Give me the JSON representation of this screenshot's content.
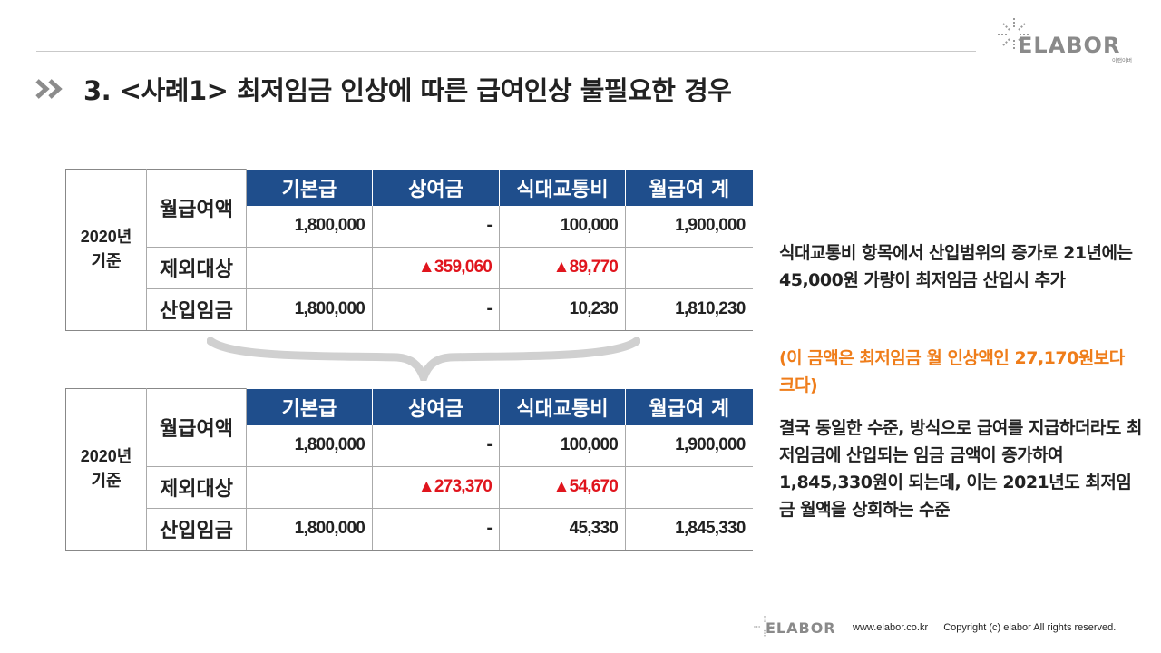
{
  "logo": {
    "text": "ELABOR",
    "subtext": "이랩이버"
  },
  "title": "3. <사례1> 최저임금 인상에 따른 급여인상 불필요한 경우",
  "tables": [
    {
      "year_label": "2020년\n기준",
      "columns": [
        "기본급",
        "상여금",
        "식대교통비",
        "월급여 계"
      ],
      "rows": [
        {
          "label": "월급여액",
          "values": [
            "1,800,000",
            "-",
            "100,000",
            "1,900,000"
          ]
        },
        {
          "label": "제외대상",
          "values": [
            "",
            "▲359,060",
            "▲89,770",
            ""
          ]
        },
        {
          "label": "산입임금",
          "values": [
            "1,800,000",
            "-",
            "10,230",
            "1,810,230"
          ]
        }
      ]
    },
    {
      "year_label": "2020년\n기준",
      "columns": [
        "기본급",
        "상여금",
        "식대교통비",
        "월급여 계"
      ],
      "rows": [
        {
          "label": "월급여액",
          "values": [
            "1,800,000",
            "-",
            "100,000",
            "1,900,000"
          ]
        },
        {
          "label": "제외대상",
          "values": [
            "",
            "▲273,370",
            "▲54,670",
            ""
          ]
        },
        {
          "label": "산입임금",
          "values": [
            "1,800,000",
            "-",
            "45,330",
            "1,845,330"
          ]
        }
      ]
    }
  ],
  "notes": {
    "note1": "식대교통비 항목에서 산입범위의 증가로 21년에는 45,000원 가량이 최저임금 산입시 추가",
    "note2": "(이 금액은 최저임금 월 인상액인 27,170원보다 크다)",
    "note3": "결국 동일한 수준, 방식으로 급여를 지급하더라도 최저임금에 산입되는 임금 금액이 증가하여 1,845,330원이 되는데, 이는 2021년도 최저임금 월액을 상회하는 수준"
  },
  "footer": {
    "logo_text": "ELABOR",
    "url": "www.elabor.co.kr",
    "copyright": "Copyright (c) elabor All rights reserved."
  },
  "colors": {
    "header_blue": "#1f4e8c",
    "negative_red": "#e0151d",
    "note_orange": "#ef7d1a"
  }
}
